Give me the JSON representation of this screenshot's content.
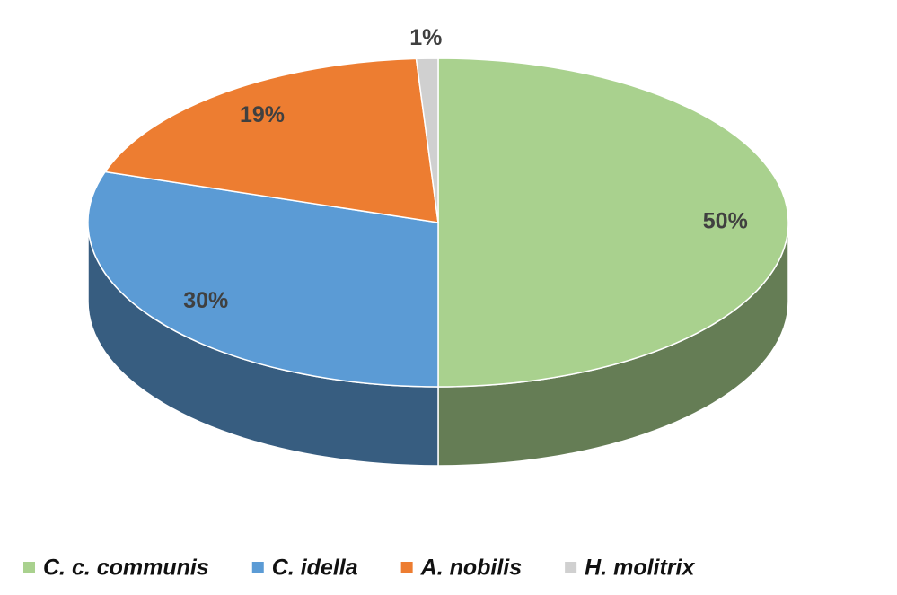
{
  "chart_data": {
    "type": "pie3d",
    "categories": [
      "C. c. communis",
      "C. idella",
      "A. nobilis",
      "H. molitrix"
    ],
    "values": [
      50,
      30,
      19,
      1
    ],
    "value_labels": [
      "50%",
      "30%",
      "19%",
      "1%"
    ],
    "colors": [
      "#a9d18e",
      "#5b9bd5",
      "#ed7d31",
      "#d0d0d0"
    ],
    "legend": "bottom"
  }
}
